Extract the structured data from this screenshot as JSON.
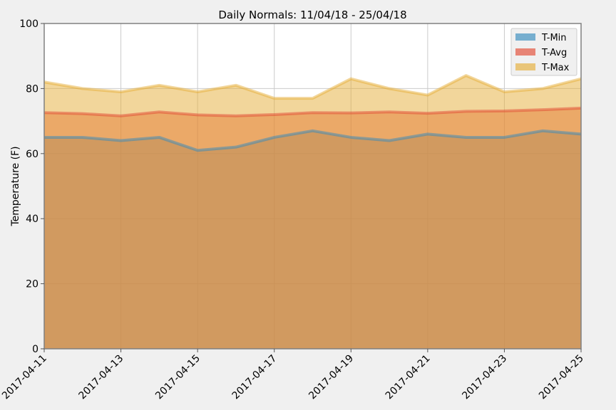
{
  "chart_data": {
    "type": "area",
    "title": "Daily Normals: 11/04/18 - 25/04/18",
    "xlabel": "",
    "ylabel": "Temperature (F)",
    "ylim": [
      0,
      100
    ],
    "yticks": [
      0,
      20,
      40,
      60,
      80,
      100
    ],
    "xlim": [
      "2017-04-11",
      "2017-04-25"
    ],
    "xticks": [
      "2017-04-11",
      "2017-04-13",
      "2017-04-15",
      "2017-04-17",
      "2017-04-19",
      "2017-04-21",
      "2017-04-23",
      "2017-04-25"
    ],
    "x": [
      "2017-04-11",
      "2017-04-12",
      "2017-04-13",
      "2017-04-14",
      "2017-04-15",
      "2017-04-16",
      "2017-04-17",
      "2017-04-18",
      "2017-04-19",
      "2017-04-20",
      "2017-04-21",
      "2017-04-22",
      "2017-04-23",
      "2017-04-24",
      "2017-04-25"
    ],
    "series": [
      {
        "name": "T-Min",
        "color": "#348ABD",
        "values": [
          65,
          65,
          64,
          65,
          61,
          62,
          65,
          67,
          65,
          64,
          66,
          65,
          65,
          67,
          66
        ]
      },
      {
        "name": "T-Avg",
        "color": "#E24A33",
        "values": [
          72.6,
          72.3,
          71.6,
          72.8,
          71.9,
          71.6,
          72.0,
          72.6,
          72.5,
          72.8,
          72.4,
          73.0,
          73.1,
          73.5,
          74.0
        ]
      },
      {
        "name": "T-Max",
        "color": "#E5AE38",
        "values": [
          82,
          80,
          79,
          81,
          79,
          81,
          77,
          77,
          83,
          80,
          78,
          84,
          79,
          80,
          83
        ]
      }
    ],
    "stacked": false,
    "grid": true,
    "legend_position": "top-right",
    "background": "#f0f0f0",
    "plot_background": "#ffffff"
  }
}
